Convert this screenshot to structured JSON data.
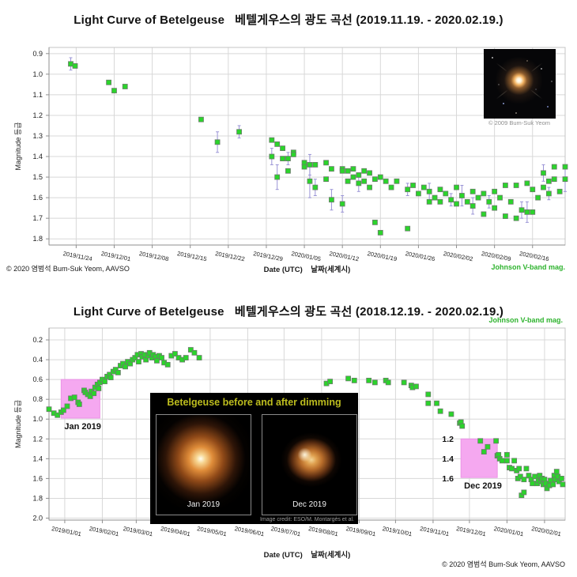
{
  "colors": {
    "point_fill": "#2bd42b",
    "point_stroke": "#6b7b6b",
    "error_bar": "#9a94d6",
    "grid": "#d8d8d8",
    "border": "#c4c4c4",
    "axis": "#8f8f8f",
    "highlight": "#f5a8f0",
    "highlight_edge": "#eb93e6",
    "band_green": "#2eb32e"
  },
  "texts": {
    "xaxis_caption_top": "Date (UTC)    날짜(세계시)",
    "xaxis_caption_bottom": "Date (UTC)    날짜(세계시)",
    "credit_top": "© 2020 염범석 Bum-Suk Yeom, AAVSO",
    "credit_bottom": "© 2020 염범석 Bum-Suk Yeom, AAVSO"
  },
  "chart_data": [
    {
      "type": "scatter",
      "title": "Light Curve of Betelgeuse   베텔게우스의 광도 곡선 (2019.11.19. - 2020.02.19.)",
      "xlabel": "Date (UTC) 날짜(세계시)",
      "ylabel": "Magnitude 등급",
      "x_unit": "days since 2019-11-19",
      "x_domain": [
        0,
        95
      ],
      "y_domain": [
        0.87,
        1.83
      ],
      "y_axis_inverted_visual": "magnitude increases downward",
      "grid": true,
      "y_ticks": [
        0.9,
        1.0,
        1.1,
        1.2,
        1.3,
        1.4,
        1.5,
        1.6,
        1.7,
        1.8
      ],
      "x_ticks": [
        {
          "d": 5,
          "label": "2019/11/24"
        },
        {
          "d": 12,
          "label": "2019/12/01"
        },
        {
          "d": 19,
          "label": "2019/12/08"
        },
        {
          "d": 26,
          "label": "2019/12/15"
        },
        {
          "d": 33,
          "label": "2019/12/22"
        },
        {
          "d": 40,
          "label": "2019/12/29"
        },
        {
          "d": 47,
          "label": "2020/01/05"
        },
        {
          "d": 54,
          "label": "2020/01/12"
        },
        {
          "d": 61,
          "label": "2020/01/19"
        },
        {
          "d": 68,
          "label": "2020/01/26"
        },
        {
          "d": 75,
          "label": "2020/02/02"
        },
        {
          "d": 82,
          "label": "2020/02/09"
        },
        {
          "d": 89,
          "label": "2020/02/16"
        }
      ],
      "inset_caption": "© 2009 Bum-Suk Yeom",
      "series": [
        {
          "name": "Johnson V-band mag.",
          "points": [
            [
              4,
              0.95,
              0.03
            ],
            [
              4.8,
              0.96
            ],
            [
              11,
              1.04
            ],
            [
              12,
              1.08
            ],
            [
              14,
              1.06
            ],
            [
              28,
              1.22
            ],
            [
              31,
              1.33,
              0.05
            ],
            [
              35,
              1.28,
              0.03
            ],
            [
              41,
              1.32
            ],
            [
              41,
              1.4,
              0.04
            ],
            [
              42,
              1.34
            ],
            [
              42,
              1.5,
              0.06
            ],
            [
              43,
              1.36
            ],
            [
              43,
              1.41
            ],
            [
              44,
              1.41,
              0.03
            ],
            [
              44,
              1.47
            ],
            [
              45,
              1.38
            ],
            [
              45,
              1.39
            ],
            [
              47,
              1.43
            ],
            [
              47,
              1.45
            ],
            [
              48,
              1.44,
              0.05
            ],
            [
              48,
              1.52,
              0.08
            ],
            [
              49,
              1.44
            ],
            [
              49,
              1.55,
              0.04
            ],
            [
              51,
              1.43
            ],
            [
              51,
              1.51
            ],
            [
              52,
              1.46
            ],
            [
              52,
              1.61,
              0.05
            ],
            [
              54,
              1.46
            ],
            [
              54,
              1.47
            ],
            [
              54,
              1.63,
              0.04
            ],
            [
              55,
              1.47
            ],
            [
              55,
              1.52
            ],
            [
              56,
              1.46
            ],
            [
              56,
              1.5
            ],
            [
              57,
              1.49
            ],
            [
              57,
              1.53,
              0.04
            ],
            [
              58,
              1.47
            ],
            [
              58,
              1.52
            ],
            [
              59,
              1.48
            ],
            [
              59,
              1.55
            ],
            [
              60,
              1.51
            ],
            [
              60,
              1.72
            ],
            [
              61,
              1.5
            ],
            [
              61,
              1.77
            ],
            [
              62,
              1.52
            ],
            [
              63,
              1.55
            ],
            [
              64,
              1.52
            ],
            [
              66,
              1.56,
              0.03
            ],
            [
              66,
              1.75
            ],
            [
              67,
              1.54
            ],
            [
              68,
              1.58
            ],
            [
              69,
              1.55
            ],
            [
              70,
              1.57,
              0.04
            ],
            [
              70,
              1.62
            ],
            [
              71,
              1.6
            ],
            [
              72,
              1.56
            ],
            [
              72,
              1.62
            ],
            [
              73,
              1.58
            ],
            [
              74,
              1.61,
              0.03
            ],
            [
              75,
              1.55
            ],
            [
              75,
              1.63
            ],
            [
              76,
              1.59,
              0.05
            ],
            [
              77,
              1.62
            ],
            [
              78,
              1.57
            ],
            [
              78,
              1.64,
              0.04
            ],
            [
              79,
              1.6
            ],
            [
              80,
              1.58
            ],
            [
              80,
              1.68
            ],
            [
              81,
              1.62,
              0.03
            ],
            [
              82,
              1.57
            ],
            [
              82,
              1.65
            ],
            [
              83,
              1.6
            ],
            [
              84,
              1.54
            ],
            [
              84,
              1.69
            ],
            [
              85,
              1.62
            ],
            [
              86,
              1.54
            ],
            [
              86,
              1.7
            ],
            [
              87,
              1.66,
              0.04
            ],
            [
              88,
              1.53
            ],
            [
              88,
              1.67,
              0.05
            ],
            [
              89,
              1.56
            ],
            [
              89,
              1.67
            ],
            [
              90,
              1.6
            ],
            [
              91,
              1.48,
              0.04
            ],
            [
              91,
              1.55
            ],
            [
              92,
              1.52
            ],
            [
              92,
              1.58,
              0.03
            ],
            [
              93,
              1.45
            ],
            [
              93,
              1.51
            ],
            [
              94,
              1.57
            ],
            [
              95,
              1.45
            ],
            [
              95,
              1.51,
              0.06
            ]
          ]
        }
      ]
    },
    {
      "type": "scatter",
      "title": "Light Curve of Betelgeuse   베텔게우스의 광도 곡선 (2018.12.19. - 2020.02.19.)",
      "xlabel": "Date (UTC) 날짜(세계시)",
      "ylabel": "Magnitude 등급",
      "x_unit": "days since 2018-12-19",
      "x_domain": [
        0,
        426
      ],
      "y_domain": [
        0.08,
        2.02
      ],
      "y_axis_inverted_visual": "magnitude increases downward",
      "grid": true,
      "y_ticks": [
        0.2,
        0.4,
        0.6,
        0.8,
        1.0,
        1.2,
        1.4,
        1.6,
        1.8,
        2.0
      ],
      "x_ticks": [
        {
          "d": 13,
          "label": "2019/01/01"
        },
        {
          "d": 44,
          "label": "2019/02/01"
        },
        {
          "d": 72,
          "label": "2019/03/01"
        },
        {
          "d": 103,
          "label": "2019/04/01"
        },
        {
          "d": 133,
          "label": "2019/05/01"
        },
        {
          "d": 164,
          "label": "2019/06/01"
        },
        {
          "d": 194,
          "label": "2019/07/01"
        },
        {
          "d": 225,
          "label": "2019/08/01"
        },
        {
          "d": 256,
          "label": "2019/09/01"
        },
        {
          "d": 286,
          "label": "2019/10/01"
        },
        {
          "d": 317,
          "label": "2019/11/01"
        },
        {
          "d": 347,
          "label": "2019/12/01"
        },
        {
          "d": 378,
          "label": "2020/01/01"
        },
        {
          "d": 409,
          "label": "2020/02/01"
        }
      ],
      "annotations": {
        "highlights": [
          {
            "label": "Jan 2019",
            "d0": 10,
            "d1": 42,
            "m0": 0.6,
            "m1": 0.99
          },
          {
            "label": "Dec 2019",
            "d0": 340,
            "d1": 370,
            "m0": 1.2,
            "m1": 1.59
          }
        ],
        "mag_callouts": [
          {
            "text": "1.2",
            "d": 334,
            "mag": 1.2
          },
          {
            "text": "1.4",
            "d": 334,
            "mag": 1.4
          },
          {
            "text": "1.6",
            "d": 334,
            "mag": 1.6
          }
        ]
      },
      "inset": {
        "title": "Betelgeuse before and after dimming",
        "left_label": "Jan 2019",
        "right_label": "Dec 2019",
        "credit": "Image credit: ESO/M. Montargès et al."
      },
      "series": [
        {
          "name": "Johnson V-band mag.",
          "points": [
            [
              0,
              0.9
            ],
            [
              4,
              0.94
            ],
            [
              7,
              0.96
            ],
            [
              10,
              0.93
            ],
            [
              12,
              0.91
            ],
            [
              15,
              0.87
            ],
            [
              18,
              0.79
            ],
            [
              21,
              0.78
            ],
            [
              24,
              0.83
            ],
            [
              25,
              0.85
            ],
            [
              29,
              0.71
            ],
            [
              30,
              0.73
            ],
            [
              32,
              0.75
            ],
            [
              34,
              0.77
            ],
            [
              35,
              0.72
            ],
            [
              37,
              0.74
            ],
            [
              38,
              0.68
            ],
            [
              40,
              0.65
            ],
            [
              41,
              0.69
            ],
            [
              42,
              0.63
            ],
            [
              44,
              0.6
            ],
            [
              46,
              0.62
            ],
            [
              48,
              0.57
            ],
            [
              50,
              0.55
            ],
            [
              51,
              0.58
            ],
            [
              53,
              0.52
            ],
            [
              55,
              0.5
            ],
            [
              57,
              0.53
            ],
            [
              59,
              0.46
            ],
            [
              61,
              0.44
            ],
            [
              63,
              0.47
            ],
            [
              65,
              0.42
            ],
            [
              67,
              0.44
            ],
            [
              69,
              0.4
            ],
            [
              71,
              0.38
            ],
            [
              73,
              0.35
            ],
            [
              74,
              0.42
            ],
            [
              76,
              0.34
            ],
            [
              77,
              0.37
            ],
            [
              79,
              0.35
            ],
            [
              80,
              0.4
            ],
            [
              82,
              0.36
            ],
            [
              83,
              0.33
            ],
            [
              85,
              0.38
            ],
            [
              86,
              0.35
            ],
            [
              88,
              0.37
            ],
            [
              89,
              0.41
            ],
            [
              91,
              0.36
            ],
            [
              93,
              0.38
            ],
            [
              95,
              0.43
            ],
            [
              98,
              0.45
            ],
            [
              101,
              0.36
            ],
            [
              104,
              0.34
            ],
            [
              107,
              0.38
            ],
            [
              110,
              0.4
            ],
            [
              113,
              0.38
            ],
            [
              117,
              0.3
            ],
            [
              120,
              0.33
            ],
            [
              124,
              0.38
            ],
            [
              229,
              0.64
            ],
            [
              232,
              0.62
            ],
            [
              247,
              0.59
            ],
            [
              252,
              0.61
            ],
            [
              264,
              0.61
            ],
            [
              269,
              0.63
            ],
            [
              278,
              0.61
            ],
            [
              280,
              0.63
            ],
            [
              293,
              0.63
            ],
            [
              299,
              0.66
            ],
            [
              300,
              0.68
            ],
            [
              303,
              0.67
            ],
            [
              313,
              0.75
            ],
            [
              313,
              0.84
            ],
            [
              320,
              0.84
            ],
            [
              323,
              0.92
            ],
            [
              332,
              0.95
            ],
            [
              339,
              1.04
            ],
            [
              340,
              1.03
            ],
            [
              341,
              1.07
            ],
            [
              356,
              1.22
            ],
            [
              359,
              1.33
            ],
            [
              362,
              1.28
            ],
            [
              369,
              1.22
            ],
            [
              370,
              1.37
            ],
            [
              371,
              1.36
            ],
            [
              372,
              1.4
            ],
            [
              374,
              1.42
            ],
            [
              378,
              1.36
            ],
            [
              378,
              1.42
            ],
            [
              380,
              1.49
            ],
            [
              382,
              1.5
            ],
            [
              384,
              1.42
            ],
            [
              386,
              1.52
            ],
            [
              387,
              1.6
            ],
            [
              388,
              1.5
            ],
            [
              389,
              1.58
            ],
            [
              390,
              1.77
            ],
            [
              392,
              1.61
            ],
            [
              392,
              1.74
            ],
            [
              394,
              1.5
            ],
            [
              396,
              1.57
            ],
            [
              398,
              1.61
            ],
            [
              399,
              1.65
            ],
            [
              401,
              1.58
            ],
            [
              403,
              1.65
            ],
            [
              404,
              1.62
            ],
            [
              405,
              1.57
            ],
            [
              406,
              1.63
            ],
            [
              407,
              1.6
            ],
            [
              408,
              1.66
            ],
            [
              409,
              1.61
            ],
            [
              410,
              1.65
            ],
            [
              411,
              1.7
            ],
            [
              413,
              1.67
            ],
            [
              414,
              1.62
            ],
            [
              416,
              1.66
            ],
            [
              417,
              1.57
            ],
            [
              418,
              1.61
            ],
            [
              419,
              1.53
            ],
            [
              420,
              1.58
            ],
            [
              421,
              1.63
            ],
            [
              423,
              1.6
            ],
            [
              424,
              1.66
            ]
          ]
        }
      ]
    }
  ]
}
